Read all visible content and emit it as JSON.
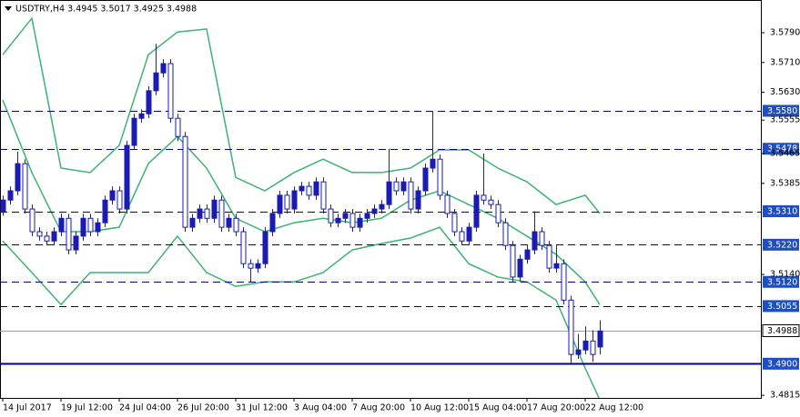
{
  "chart_data": {
    "type": "candlestick",
    "title": "USDTRY,H4  3.4945 3.5017 3.4925 3.4988",
    "categories": [
      "14 Jul 2017",
      null,
      null,
      null,
      null,
      null,
      null,
      null,
      "19 Jul 12:00",
      null,
      null,
      null,
      null,
      null,
      null,
      null,
      "24 Jul 04:00",
      null,
      null,
      null,
      null,
      null,
      null,
      null,
      "26 Jul 20:00",
      null,
      null,
      null,
      null,
      null,
      null,
      null,
      "31 Jul 12:00",
      null,
      null,
      null,
      null,
      null,
      null,
      null,
      "3 Aug 04:00",
      null,
      null,
      null,
      null,
      null,
      null,
      null,
      "7 Aug 20:00",
      null,
      null,
      null,
      null,
      null,
      null,
      null,
      "10 Aug 12:00",
      null,
      null,
      null,
      null,
      null,
      null,
      null,
      "15 Aug 04:00",
      null,
      null,
      null,
      null,
      null,
      null,
      null,
      "17 Aug 20:00",
      null,
      null,
      null,
      null,
      null,
      null,
      null,
      "22 Aug 12:00",
      null,
      null
    ],
    "open": [
      3.531,
      3.534,
      3.5365,
      3.5438,
      3.5316,
      3.5255,
      3.5243,
      3.523,
      3.5255,
      3.5291,
      3.5206,
      3.5243,
      3.5291,
      3.5255,
      3.5279,
      3.534,
      3.5365,
      3.5316,
      3.5487,
      3.556,
      3.5572,
      3.5634,
      3.5682,
      3.5707,
      3.556,
      3.5511,
      3.5267,
      3.5291,
      3.5316,
      3.5291,
      3.534,
      3.5267,
      3.5291,
      3.5255,
      3.5169,
      3.5157,
      3.5169,
      3.5255,
      3.5304,
      3.5353,
      3.5316,
      3.5365,
      3.5377,
      3.5353,
      3.5389,
      3.5316,
      3.5279,
      3.5291,
      3.5304,
      3.5267,
      3.5291,
      3.5304,
      3.5316,
      3.5328,
      3.5389,
      3.5365,
      3.5389,
      3.5316,
      3.5365,
      3.5426,
      3.545,
      3.5353,
      3.5304,
      3.5255,
      3.523,
      3.5267,
      3.5353,
      3.534,
      3.5328,
      3.5279,
      3.5218,
      3.5133,
      3.5181,
      3.5206,
      3.5255,
      3.5218,
      3.5157,
      3.5169,
      3.5071,
      3.4925,
      3.4937,
      3.4961,
      3.4945
    ],
    "high": [
      3.5352,
      3.5377,
      3.547,
      3.545,
      3.5328,
      3.5267,
      3.5255,
      3.5267,
      3.5303,
      3.5303,
      3.5255,
      3.5303,
      3.5303,
      3.5291,
      3.5352,
      3.5377,
      3.5377,
      3.5499,
      3.5572,
      3.5584,
      3.5646,
      3.576,
      3.5719,
      3.5719,
      3.5572,
      3.5523,
      3.5303,
      3.5328,
      3.5328,
      3.5352,
      3.5352,
      3.5303,
      3.5303,
      3.5267,
      3.5181,
      3.5181,
      3.5267,
      3.5316,
      3.5365,
      3.5365,
      3.5377,
      3.5389,
      3.5389,
      3.5401,
      3.5401,
      3.5328,
      3.5303,
      3.5316,
      3.5316,
      3.5303,
      3.5316,
      3.5328,
      3.534,
      3.5478,
      3.5401,
      3.5401,
      3.5401,
      3.5377,
      3.5438,
      3.558,
      3.5462,
      3.5365,
      3.5316,
      3.5267,
      3.5279,
      3.5365,
      3.5465,
      3.5352,
      3.534,
      3.5291,
      3.523,
      3.5193,
      3.5218,
      3.531,
      3.5267,
      3.523,
      3.522,
      3.5181,
      3.5083,
      3.498,
      3.5,
      3.499,
      3.5017
    ],
    "low": [
      3.5298,
      3.5328,
      3.5353,
      3.5304,
      3.5243,
      3.5231,
      3.5218,
      3.5218,
      3.5243,
      3.5194,
      3.5194,
      3.5231,
      3.5243,
      3.5243,
      3.5267,
      3.5328,
      3.5304,
      3.5304,
      3.5475,
      3.5548,
      3.556,
      3.5622,
      3.567,
      3.5548,
      3.5499,
      3.5255,
      3.5255,
      3.5279,
      3.5279,
      3.5279,
      3.5255,
      3.5255,
      3.5243,
      3.5157,
      3.512,
      3.5145,
      3.5157,
      3.5243,
      3.5292,
      3.5304,
      3.5304,
      3.5353,
      3.5341,
      3.5341,
      3.5304,
      3.5267,
      3.5267,
      3.5279,
      3.5255,
      3.5255,
      3.5279,
      3.5292,
      3.5304,
      3.5316,
      3.5353,
      3.5353,
      3.5304,
      3.5304,
      3.5353,
      3.5414,
      3.5341,
      3.5292,
      3.5243,
      3.5218,
      3.5218,
      3.5255,
      3.5328,
      3.5316,
      3.5267,
      3.5206,
      3.5121,
      3.5121,
      3.5169,
      3.5194,
      3.5206,
      3.5145,
      3.5145,
      3.5059,
      3.49,
      3.4913,
      3.4925,
      3.4905,
      3.4925
    ],
    "close": [
      3.534,
      3.5365,
      3.5438,
      3.5316,
      3.5255,
      3.5243,
      3.523,
      3.5255,
      3.5291,
      3.5206,
      3.5243,
      3.5291,
      3.5255,
      3.5279,
      3.534,
      3.5365,
      3.5316,
      3.5487,
      3.556,
      3.5572,
      3.5634,
      3.5682,
      3.5707,
      3.556,
      3.5511,
      3.5267,
      3.5291,
      3.5316,
      3.5291,
      3.534,
      3.5267,
      3.5291,
      3.5255,
      3.5169,
      3.5157,
      3.5169,
      3.5255,
      3.5304,
      3.5353,
      3.5316,
      3.5365,
      3.5377,
      3.5353,
      3.5389,
      3.5316,
      3.5279,
      3.5291,
      3.5304,
      3.5267,
      3.5291,
      3.5304,
      3.5316,
      3.5328,
      3.5389,
      3.5365,
      3.5389,
      3.5316,
      3.5365,
      3.5426,
      3.545,
      3.5353,
      3.5304,
      3.5255,
      3.523,
      3.5267,
      3.5353,
      3.534,
      3.5328,
      3.5279,
      3.5218,
      3.5133,
      3.5181,
      3.5206,
      3.5255,
      3.5218,
      3.5157,
      3.5169,
      3.5071,
      3.4925,
      3.4937,
      3.4961,
      3.4925,
      3.4988
    ],
    "candle_color": "#1a1ab8",
    "bands": {
      "x": [
        0,
        4,
        8,
        12,
        16,
        20,
        24,
        28,
        32,
        36,
        40,
        44,
        48,
        52,
        56,
        60,
        64,
        68,
        72,
        76,
        80,
        82
      ],
      "series": [
        {
          "color": "#3cb371",
          "values": [
            3.5731,
            3.5829,
            3.5426,
            3.5414,
            3.5487,
            3.5731,
            3.5792,
            3.58,
            3.5401,
            3.5365,
            3.5414,
            3.545,
            3.5414,
            3.5414,
            3.5426,
            3.5475,
            3.5475,
            3.5426,
            3.5389,
            3.5328,
            3.5353,
            3.5304
          ]
        },
        {
          "color": "#3cb371",
          "values": [
            3.5609,
            3.5414,
            3.5255,
            3.5255,
            3.5267,
            3.5438,
            3.5511,
            3.5426,
            3.5291,
            3.5255,
            3.5279,
            3.5291,
            3.5279,
            3.5291,
            3.534,
            3.5365,
            3.5328,
            3.5291,
            3.5243,
            3.5194,
            3.512,
            3.5059
          ]
        },
        {
          "color": "#3cb371",
          "values": [
            3.523,
            3.5145,
            3.5059,
            3.5145,
            3.5145,
            3.5145,
            3.5243,
            3.5145,
            3.5108,
            3.512,
            3.512,
            3.5145,
            3.5206,
            3.5223,
            3.5238,
            3.5267,
            3.5169,
            3.5133,
            3.512,
            3.5071,
            3.4888,
            3.4803
          ]
        }
      ]
    },
    "ylim": [
      3.4808,
      3.5878
    ],
    "yticks": [
      {
        "value": 3.579,
        "label": "3.5790"
      },
      {
        "value": 3.571,
        "label": "3.5710"
      },
      {
        "value": 3.563,
        "label": "3.5630"
      },
      3.5555,
      3.5465,
      3.5385,
      {
        "value": 3.514,
        "label": "3.5140"
      },
      3.4815
    ],
    "levels": [
      {
        "value": 3.558,
        "label": "3.5580",
        "style": "dash"
      },
      {
        "value": 3.5478,
        "label": "3.5478",
        "style": "dash"
      },
      {
        "value": 3.531,
        "label": "3.5310",
        "style": "dash"
      },
      {
        "value": 3.522,
        "label": "3.5220",
        "style": "dash"
      },
      {
        "value": 3.512,
        "label": "3.5120",
        "style": "dash"
      },
      {
        "value": 3.5055,
        "label": "3.5055",
        "style": "dash"
      },
      {
        "value": 3.49,
        "label": "3.4900",
        "style": "solid"
      }
    ],
    "level_color": "#000080",
    "price_line": {
      "value": 3.4988,
      "label": "3.4988",
      "color": "#a0a0a0"
    }
  }
}
